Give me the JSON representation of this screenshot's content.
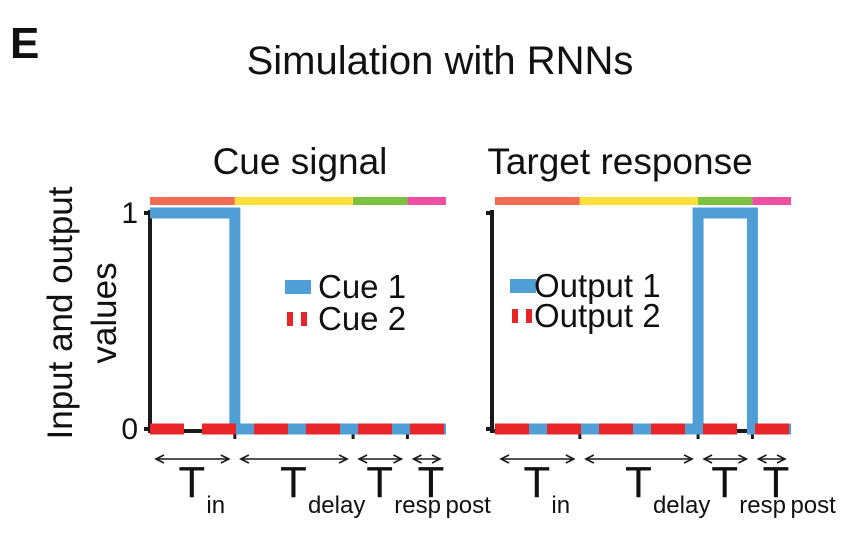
{
  "panel_letter": "E",
  "title": "Simulation with RNNs",
  "ylabel_line1": "Input and output",
  "ylabel_line2": "values",
  "colors": {
    "cue1": "#4f9fd6",
    "cue2": "#e8262a",
    "phase_in": "#f26b55",
    "phase_delay": "#fde03a",
    "phase_resp": "#7cc242",
    "phase_post": "#ef4fa0",
    "axis": "#1a1a1a"
  },
  "chart_data": [
    {
      "type": "line",
      "title": "Cue signal",
      "yticks": [
        "1",
        "0"
      ],
      "ylim": [
        0,
        1
      ],
      "phases": [
        {
          "name": "in",
          "start": 0,
          "end": 0.231
        },
        {
          "name": "delay",
          "start": 0.231,
          "end": 0.553
        },
        {
          "name": "resp",
          "start": 0.553,
          "end": 0.701
        },
        {
          "name": "post",
          "start": 0.701,
          "end": 0.806
        }
      ],
      "xlim": [
        0,
        0.806
      ],
      "series": [
        {
          "name": "Cue 1",
          "style": "solid",
          "points": [
            [
              0,
              1
            ],
            [
              0.231,
              1
            ],
            [
              0.231,
              0
            ],
            [
              0.806,
              0
            ]
          ]
        },
        {
          "name": "Cue 2",
          "style": "dashed",
          "points": [
            [
              0,
              0
            ],
            [
              0.806,
              0
            ]
          ]
        }
      ],
      "legend": [
        "Cue 1",
        "Cue 2"
      ],
      "phase_labels": [
        {
          "main": "T",
          "sub": "in"
        },
        {
          "main": "T",
          "sub": "delay"
        },
        {
          "main": "T",
          "sub": "resp"
        },
        {
          "main": "T",
          "sub": "post"
        }
      ]
    },
    {
      "type": "line",
      "title": "Target response",
      "ylim": [
        0,
        1
      ],
      "phases": [
        {
          "name": "in",
          "start": 0,
          "end": 0.231
        },
        {
          "name": "delay",
          "start": 0.231,
          "end": 0.553
        },
        {
          "name": "resp",
          "start": 0.553,
          "end": 0.701
        },
        {
          "name": "post",
          "start": 0.701,
          "end": 0.806
        }
      ],
      "xlim": [
        0,
        0.806
      ],
      "series": [
        {
          "name": "Output 1",
          "style": "solid",
          "points": [
            [
              0,
              0
            ],
            [
              0.553,
              0
            ],
            [
              0.553,
              1
            ],
            [
              0.701,
              1
            ],
            [
              0.701,
              0
            ],
            [
              0.806,
              0
            ]
          ]
        },
        {
          "name": "Output 2",
          "style": "dashed",
          "points": [
            [
              0,
              0
            ],
            [
              0.806,
              0
            ]
          ]
        }
      ],
      "legend": [
        "Output 1",
        "Output 2"
      ],
      "phase_labels": [
        {
          "main": "T",
          "sub": "in"
        },
        {
          "main": "T",
          "sub": "delay"
        },
        {
          "main": "T",
          "sub": "resp"
        },
        {
          "main": "T",
          "sub": "post"
        }
      ]
    }
  ]
}
